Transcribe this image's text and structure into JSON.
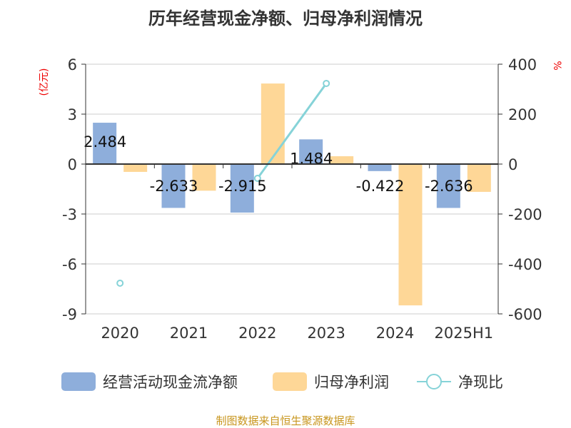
{
  "chart_data": {
    "type": "bar",
    "title": "历年经营现金净额、归母净利润情况",
    "categories": [
      "2020",
      "2021",
      "2022",
      "2023",
      "2024",
      "2025H1"
    ],
    "y_left": {
      "label": "(亿元)",
      "ylim": [
        -9,
        6
      ],
      "ticks": [
        6,
        3,
        0,
        -3,
        -6,
        -9
      ]
    },
    "y_right": {
      "label": "%",
      "ylim": [
        -600,
        400
      ],
      "ticks": [
        400,
        200,
        0,
        -200,
        -400,
        -600
      ]
    },
    "grid": true,
    "legend_position": "bottom",
    "series": [
      {
        "name": "经营活动现金流净额",
        "type": "bar",
        "axis": "left",
        "color": "#8eaedb",
        "values": [
          2.484,
          -2.633,
          -2.915,
          1.484,
          -0.422,
          -2.636
        ],
        "labels": [
          "2.484",
          "-2.633",
          "-2.915",
          "1.484",
          "-0.422",
          "-2.636"
        ]
      },
      {
        "name": "归母净利润",
        "type": "bar",
        "axis": "left",
        "color": "#fed797",
        "values": [
          -0.47,
          -1.6,
          4.84,
          0.47,
          -8.49,
          -1.67
        ]
      },
      {
        "name": "净现比",
        "type": "line",
        "axis": "right",
        "color": "#86d3d8",
        "values": [
          -477,
          null,
          -57,
          323,
          null,
          null
        ]
      }
    ],
    "source": "制图数据来自恒生聚源数据库"
  }
}
